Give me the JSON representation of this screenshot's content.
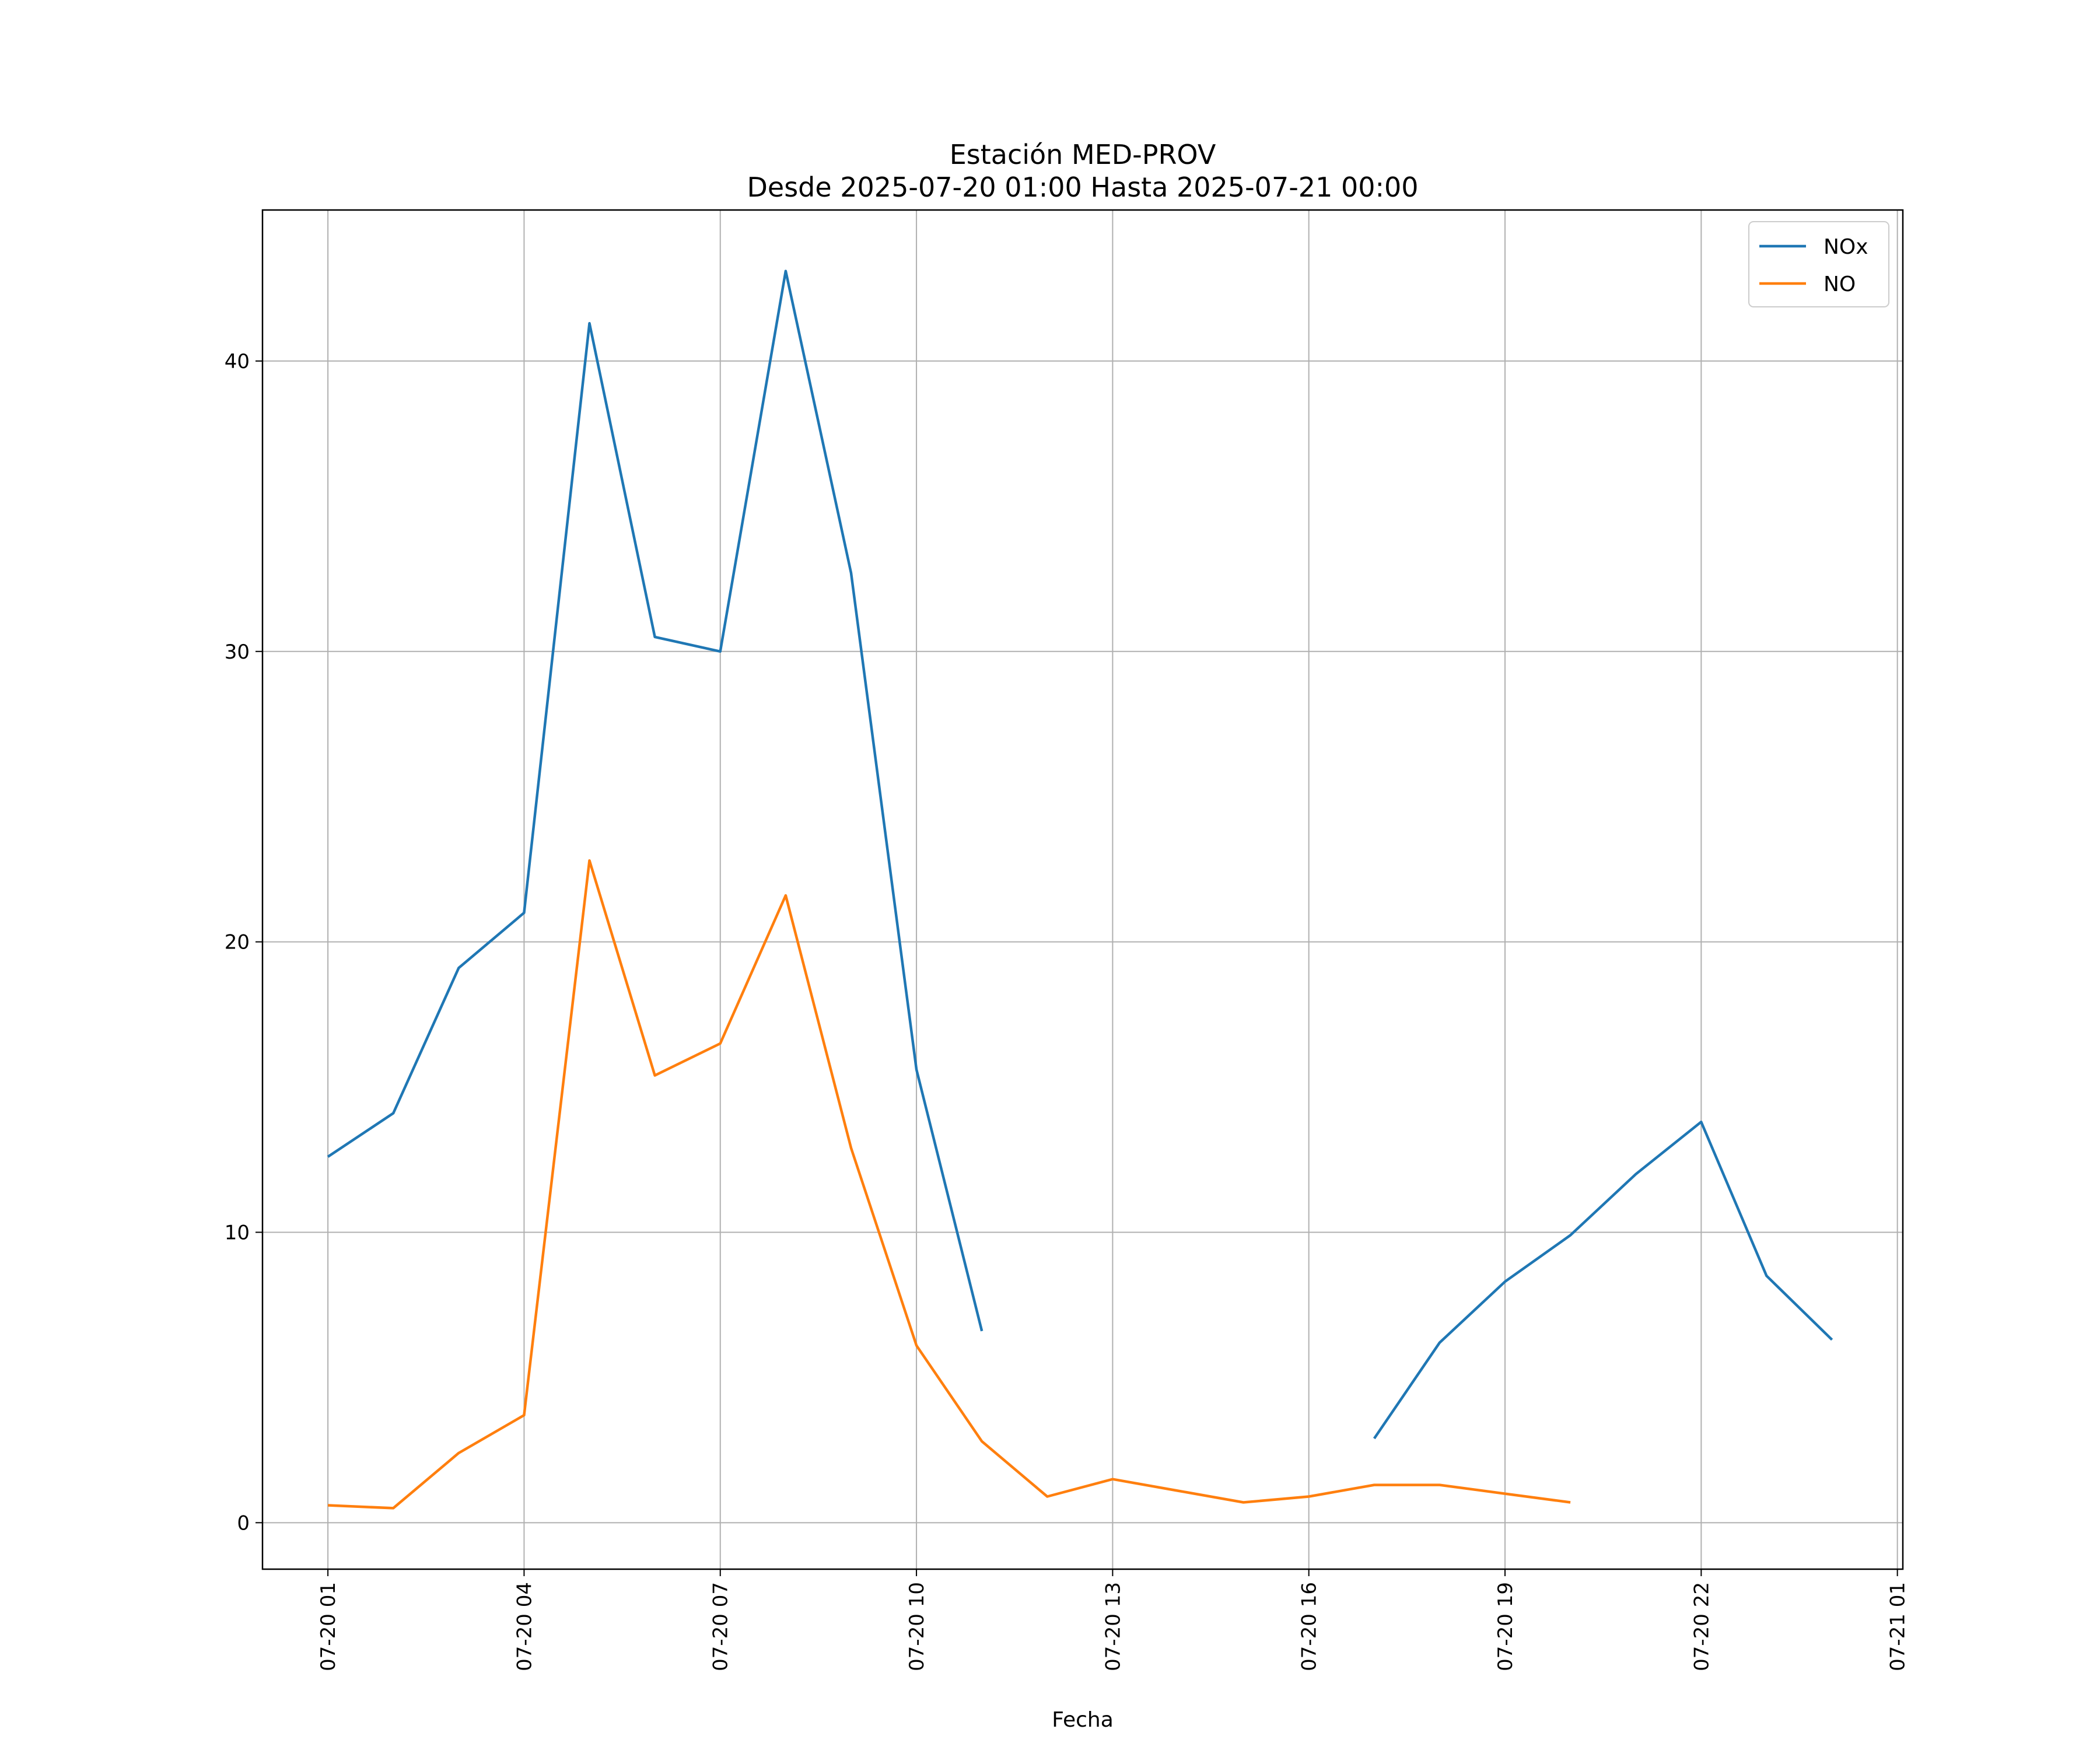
{
  "chart_data": {
    "type": "line",
    "title": "Estación MED-PROV",
    "subtitle": "Desde 2025-07-20 01:00 Hasta 2025-07-21 00:00",
    "xlabel": "Fecha",
    "ylabel": "",
    "ylim": [
      -1.6,
      45.2
    ],
    "xlim": [
      "2025-07-20 00:00",
      "2025-07-21 01:05"
    ],
    "grid": true,
    "legend": "top-right",
    "x": [
      "2025-07-20 01:00",
      "2025-07-20 02:00",
      "2025-07-20 03:00",
      "2025-07-20 04:00",
      "2025-07-20 05:00",
      "2025-07-20 06:00",
      "2025-07-20 07:00",
      "2025-07-20 08:00",
      "2025-07-20 09:00",
      "2025-07-20 10:00",
      "2025-07-20 11:00",
      "2025-07-20 12:00",
      "2025-07-20 13:00",
      "2025-07-20 14:00",
      "2025-07-20 15:00",
      "2025-07-20 16:00",
      "2025-07-20 17:00",
      "2025-07-20 18:00",
      "2025-07-20 19:00",
      "2025-07-20 20:00",
      "2025-07-20 21:00",
      "2025-07-20 22:00",
      "2025-07-20 23:00",
      "2025-07-21 00:00"
    ],
    "x_ticks": [
      {
        "value": "2025-07-20 01:00",
        "label": "07-20 01"
      },
      {
        "value": "2025-07-20 04:00",
        "label": "07-20 04"
      },
      {
        "value": "2025-07-20 07:00",
        "label": "07-20 07"
      },
      {
        "value": "2025-07-20 10:00",
        "label": "07-20 10"
      },
      {
        "value": "2025-07-20 13:00",
        "label": "07-20 13"
      },
      {
        "value": "2025-07-20 16:00",
        "label": "07-20 16"
      },
      {
        "value": "2025-07-20 19:00",
        "label": "07-20 19"
      },
      {
        "value": "2025-07-20 22:00",
        "label": "07-20 22"
      },
      {
        "value": "2025-07-21 01:00",
        "label": "07-21 01"
      }
    ],
    "y_ticks": [
      0,
      10,
      20,
      30,
      40
    ],
    "series": [
      {
        "name": "NOx",
        "color": "#1f77b4",
        "values": [
          12.6,
          14.1,
          19.1,
          21.0,
          41.3,
          30.5,
          30.0,
          43.1,
          32.7,
          15.6,
          6.6,
          null,
          null,
          null,
          null,
          null,
          2.9,
          6.2,
          8.3,
          9.9,
          12.0,
          13.8,
          8.5,
          6.3
        ]
      },
      {
        "name": "NO",
        "color": "#ff7f0e",
        "values": [
          0.6,
          0.5,
          2.4,
          3.7,
          22.8,
          15.4,
          16.5,
          21.6,
          12.9,
          6.1,
          2.8,
          0.9,
          1.5,
          1.1,
          0.7,
          0.9,
          1.3,
          1.3,
          1.0,
          0.7,
          null,
          null,
          null,
          null
        ]
      }
    ]
  }
}
